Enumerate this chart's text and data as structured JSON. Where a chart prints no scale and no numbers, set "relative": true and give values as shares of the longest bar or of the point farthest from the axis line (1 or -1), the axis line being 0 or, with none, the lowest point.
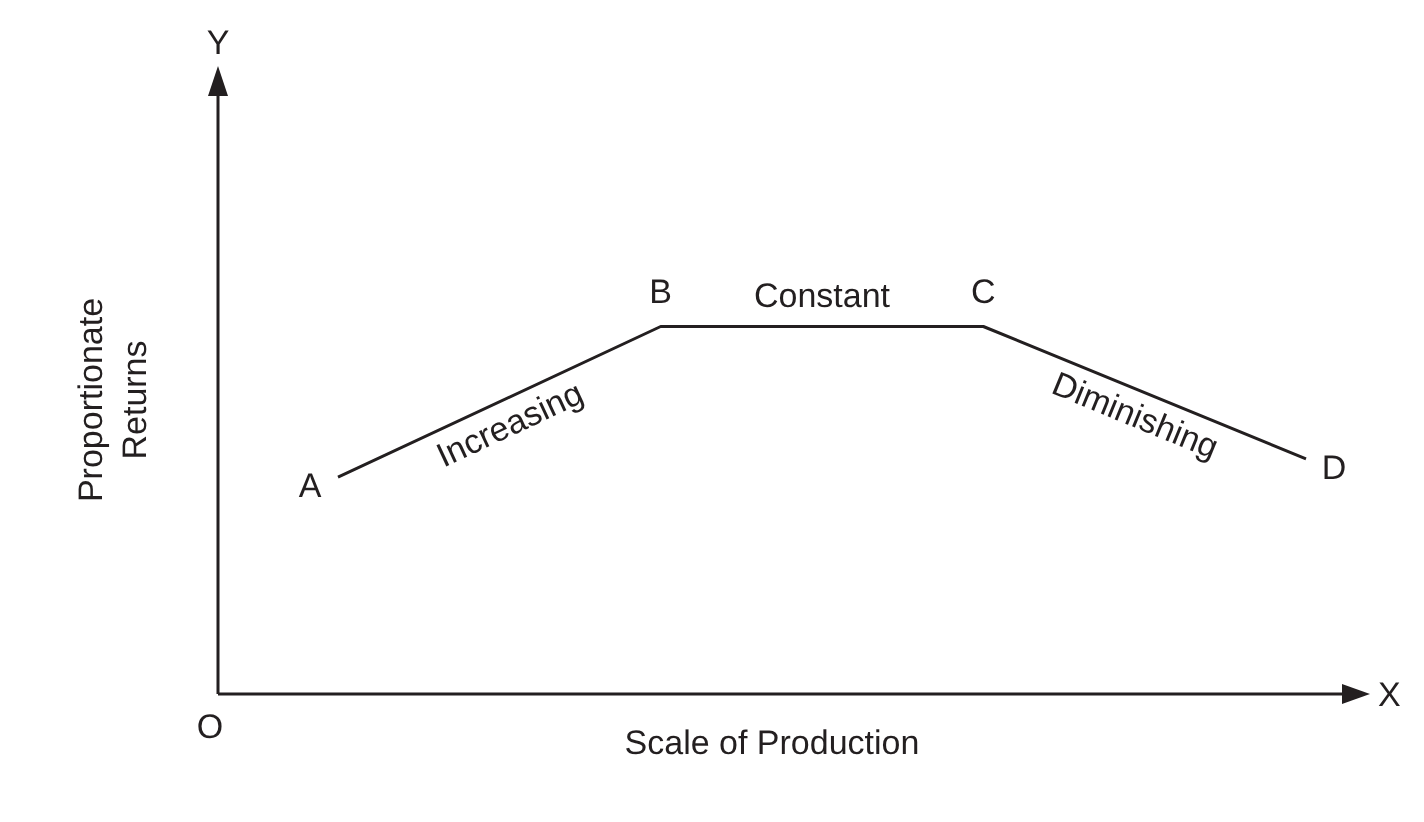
{
  "chart_data": {
    "type": "line",
    "relative": true,
    "xlabel": "Scale of Production",
    "ylabel": "Proportionate Returns",
    "categories": [
      null,
      null,
      null,
      null
    ],
    "series": [
      {
        "color": "#231f20",
        "values": [
          0.59,
          1,
          1,
          0.64
        ]
      }
    ],
    "annotations": [
      "A",
      "B",
      "C",
      "D",
      "Increasing",
      "Constant",
      "Diminishing",
      "Y",
      "X",
      "O"
    ],
    "marker": "none",
    "grid": false,
    "legend": false
  }
}
